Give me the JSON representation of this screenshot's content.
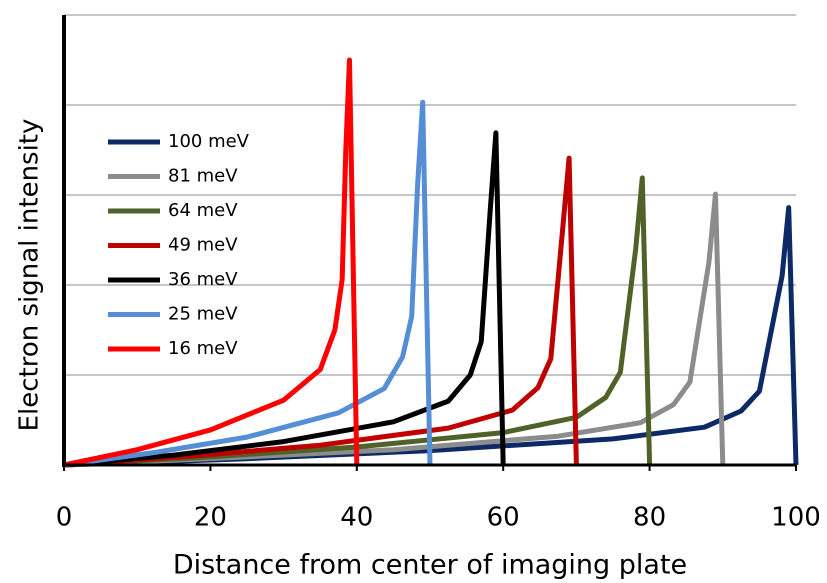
{
  "chart_data": {
    "type": "line",
    "x_label": "Distance from center of imaging plate",
    "y_label": "Electron signal intensity",
    "xlim": [
      0,
      100
    ],
    "xticks": [
      0,
      20,
      40,
      60,
      80,
      100
    ],
    "ylim": [
      0,
      5
    ],
    "ygrid": [
      1,
      2,
      3,
      4,
      5
    ],
    "grid": true,
    "series": [
      {
        "name": "100 meV",
        "color": "#0e2a66",
        "x": [
          0,
          25,
          50,
          75,
          87.5,
          92.5,
          95,
          98.1,
          99,
          100
        ],
        "values": [
          0,
          0.07,
          0.16,
          0.29,
          0.42,
          0.6,
          0.82,
          2.1,
          2.86,
          0
        ]
      },
      {
        "name": "81 meV",
        "color": "#8c8c8c",
        "x": [
          0,
          22.5,
          45,
          67.5,
          78.75,
          83.25,
          85.5,
          88.1,
          89,
          90
        ],
        "values": [
          0,
          0.08,
          0.17,
          0.32,
          0.47,
          0.67,
          0.92,
          2.25,
          3.01,
          0
        ]
      },
      {
        "name": "64 meV",
        "color": "#4f6228",
        "x": [
          0,
          20,
          40,
          60,
          70,
          74,
          76,
          78.1,
          79,
          80
        ],
        "values": [
          0,
          0.09,
          0.2,
          0.36,
          0.53,
          0.75,
          1.03,
          2.4,
          3.19,
          0
        ]
      },
      {
        "name": "49 meV",
        "color": "#c00000",
        "x": [
          0,
          17.5,
          35,
          52.5,
          61.25,
          64.75,
          66.5,
          68.1,
          69,
          70
        ],
        "values": [
          0,
          0.1,
          0.22,
          0.41,
          0.61,
          0.86,
          1.18,
          2.6,
          3.41,
          0
        ]
      },
      {
        "name": "36 meV",
        "color": "#000000",
        "x": [
          0,
          15,
          30,
          45,
          52.5,
          55.5,
          57,
          58.2,
          59,
          60
        ],
        "values": [
          0,
          0.11,
          0.26,
          0.48,
          0.71,
          1.0,
          1.37,
          2.8,
          3.69,
          0
        ]
      },
      {
        "name": "25 meV",
        "color": "#558ed5",
        "x": [
          0,
          12.5,
          25,
          37.5,
          43.75,
          46.25,
          47.5,
          48.3,
          49,
          50
        ],
        "values": [
          0,
          0.14,
          0.31,
          0.58,
          0.85,
          1.2,
          1.65,
          3.1,
          4.03,
          0
        ]
      },
      {
        "name": "16 meV",
        "color": "#ff0000",
        "x": [
          0,
          10,
          20,
          30,
          35,
          37,
          38,
          38.5,
          39,
          40
        ],
        "values": [
          0,
          0.17,
          0.39,
          0.72,
          1.06,
          1.5,
          2.06,
          3.5,
          4.5,
          0
        ]
      }
    ]
  }
}
